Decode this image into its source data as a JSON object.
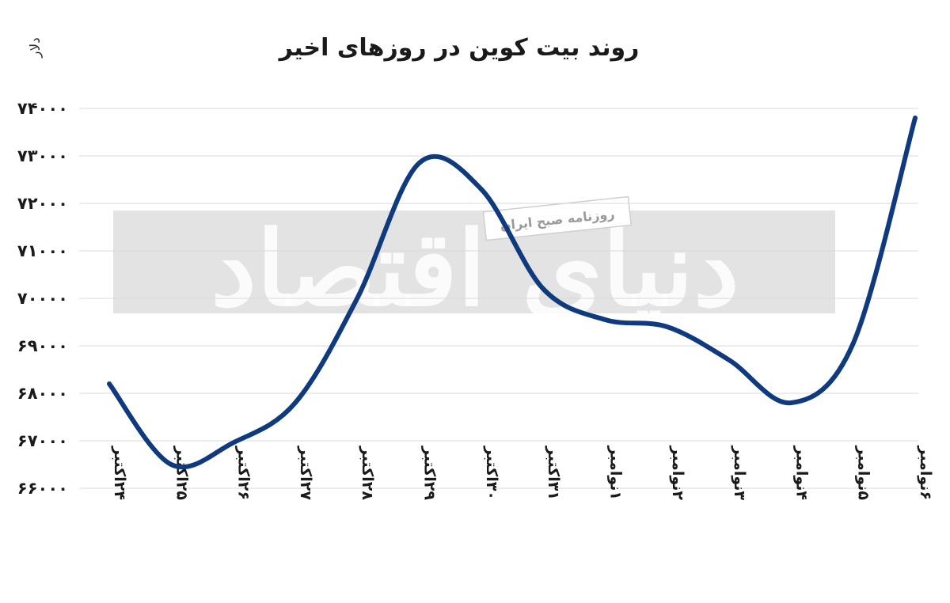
{
  "chart_data": {
    "type": "line",
    "title": "روند بیت کوین در روزهای اخیر",
    "ylabel": "دلار",
    "xlabel": "",
    "categories": [
      "۲۴اکتبر",
      "۲۵اکتبر",
      "۲۶اکتبر",
      "۲۷اکتبر",
      "۲۸اکتبر",
      "۲۹اکتبر",
      "۳۰اکتبر",
      "۳۱اکتبر",
      "۱نوامبر",
      "۲نوامبر",
      "۳نوامبر",
      "۴نوامبر",
      "۵نوامبر",
      "۶نوامبر"
    ],
    "series": [
      {
        "values": [
          68200,
          66500,
          66960,
          67800,
          70000,
          72850,
          72300,
          70200,
          69550,
          69400,
          68700,
          67800,
          69050,
          73800
        ]
      }
    ],
    "yticks": [
      66000,
      67000,
      68000,
      69000,
      70000,
      71000,
      72000,
      73000,
      74000
    ],
    "ytick_labels": [
      "۶۶۰۰۰",
      "۶۷۰۰۰",
      "۶۸۰۰۰",
      "۶۹۰۰۰",
      "۷۰۰۰۰",
      "۷۱۰۰۰",
      "۷۲۰۰۰",
      "۷۳۰۰۰",
      "۷۴۰۰۰"
    ],
    "ylim": [
      66000,
      74000
    ],
    "grid": true,
    "line_color": "#0f3a7e",
    "grid_color": "#d9d9d9"
  },
  "watermark": {
    "main": "دنیای اقتصاد",
    "sub": "روزنامه صبح ایران",
    "band_color": "#e3e3e3"
  }
}
